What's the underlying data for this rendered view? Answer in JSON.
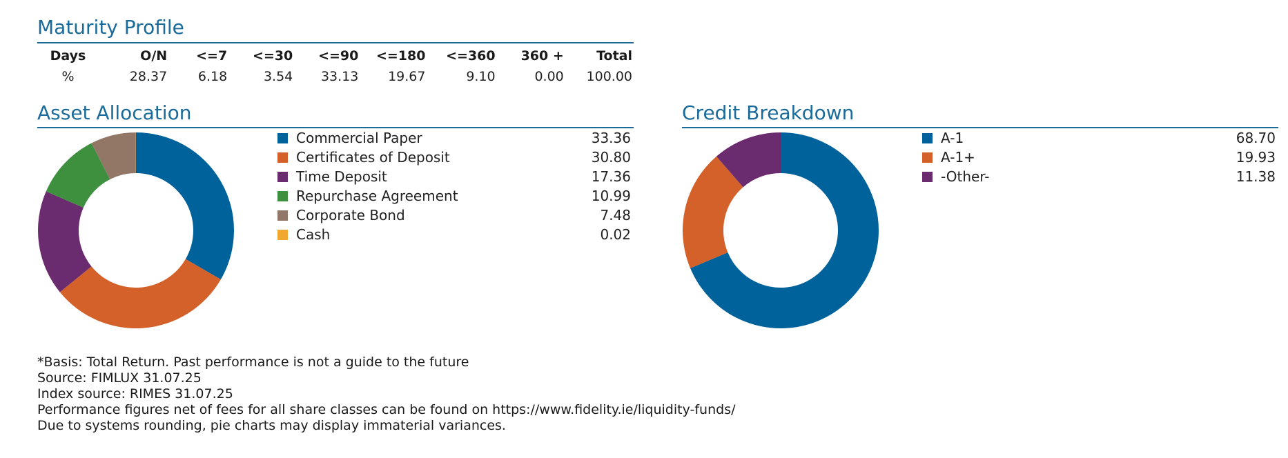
{
  "maturity": {
    "title": "Maturity Profile",
    "headers": [
      "Days",
      "O/N",
      "<=7",
      "<=30",
      "<=90",
      "<=180",
      "<=360",
      "360 +",
      "Total"
    ],
    "values": [
      "%",
      "28.37",
      "6.18",
      "3.54",
      "33.13",
      "19.67",
      "9.10",
      "0.00",
      "100.00"
    ]
  },
  "asset_allocation": {
    "title": "Asset Allocation",
    "items": [
      {
        "label": "Commercial Paper",
        "value": "33.36",
        "color": "#00629b"
      },
      {
        "label": "Certificates of Deposit",
        "value": "30.80",
        "color": "#d4612a"
      },
      {
        "label": "Time Deposit",
        "value": "17.36",
        "color": "#6b2c6f"
      },
      {
        "label": "Repurchase Agreement",
        "value": "10.99",
        "color": "#3e8f3e"
      },
      {
        "label": "Corporate Bond",
        "value": "7.48",
        "color": "#927766"
      },
      {
        "label": "Cash",
        "value": "0.02",
        "color": "#f0a830"
      }
    ]
  },
  "credit_breakdown": {
    "title": "Credit Breakdown",
    "items": [
      {
        "label": "A-1",
        "value": "68.70",
        "color": "#00629b"
      },
      {
        "label": "A-1+",
        "value": "19.93",
        "color": "#d4612a"
      },
      {
        "label": "-Other-",
        "value": "11.38",
        "color": "#6b2c6f"
      }
    ]
  },
  "chart_data": [
    {
      "type": "pie",
      "title": "Asset Allocation",
      "categories": [
        "Commercial Paper",
        "Certificates of Deposit",
        "Time Deposit",
        "Repurchase Agreement",
        "Corporate Bond",
        "Cash"
      ],
      "values": [
        33.36,
        30.8,
        17.36,
        10.99,
        7.48,
        0.02
      ],
      "colors": [
        "#00629b",
        "#d4612a",
        "#6b2c6f",
        "#3e8f3e",
        "#927766",
        "#f0a830"
      ],
      "donut": true,
      "legend": "right"
    },
    {
      "type": "pie",
      "title": "Credit Breakdown",
      "categories": [
        "A-1",
        "A-1+",
        "-Other-"
      ],
      "values": [
        68.7,
        19.93,
        11.38
      ],
      "colors": [
        "#00629b",
        "#d4612a",
        "#6b2c6f"
      ],
      "donut": true,
      "legend": "right"
    }
  ],
  "footnotes": [
    "*Basis: Total Return. Past performance is not a guide to the future",
    "Source: FIMLUX 31.07.25",
    "Index source: RIMES 31.07.25",
    "Performance figures net of fees for all share classes can be found on https://www.fidelity.ie/liquidity-funds/",
    "Due to systems rounding, pie charts may display immaterial variances."
  ]
}
